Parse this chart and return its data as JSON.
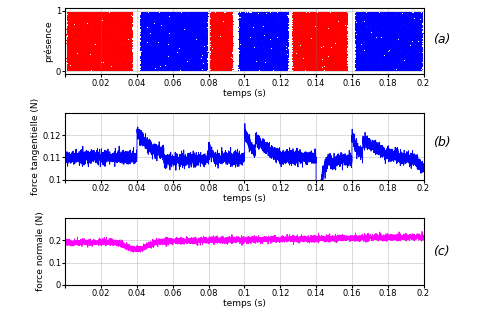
{
  "xlim": [
    0,
    0.2
  ],
  "xlabel": "temps (s)",
  "xticks": [
    0,
    0.02,
    0.04,
    0.06,
    0.08,
    0.1,
    0.12,
    0.14,
    0.16,
    0.18,
    0.2
  ],
  "panel_a": {
    "ylabel": "présence",
    "ylim": [
      -0.05,
      1.05
    ],
    "yticks": [
      0,
      1
    ],
    "red_intervals": [
      [
        0,
        0.04
      ],
      [
        0.08,
        0.095
      ],
      [
        0.125,
        0.16
      ],
      [
        0.2,
        0.2
      ]
    ],
    "blue_intervals": [
      [
        0.04,
        0.08
      ],
      [
        0.095,
        0.125
      ],
      [
        0.16,
        0.2
      ]
    ],
    "red_always": true,
    "dot_density": 8000
  },
  "panel_b": {
    "ylabel": "force tangentielle (N)",
    "ylim": [
      0.1,
      0.13
    ],
    "yticks": [
      0.1,
      0.11,
      0.12
    ],
    "color": "#0000ff",
    "base_value": 0.11,
    "noise_std": 0.0015
  },
  "panel_c": {
    "ylabel": "force normale (N)",
    "ylim": [
      0,
      0.3
    ],
    "yticks": [
      0,
      0.1,
      0.2
    ],
    "color": "#ff00ff",
    "base_value": 0.19,
    "noise_std": 0.007
  },
  "label_a": "(a)",
  "label_b": "(b)",
  "label_c": "(c)",
  "fig_width": 4.84,
  "fig_height": 3.13,
  "dpi": 100
}
